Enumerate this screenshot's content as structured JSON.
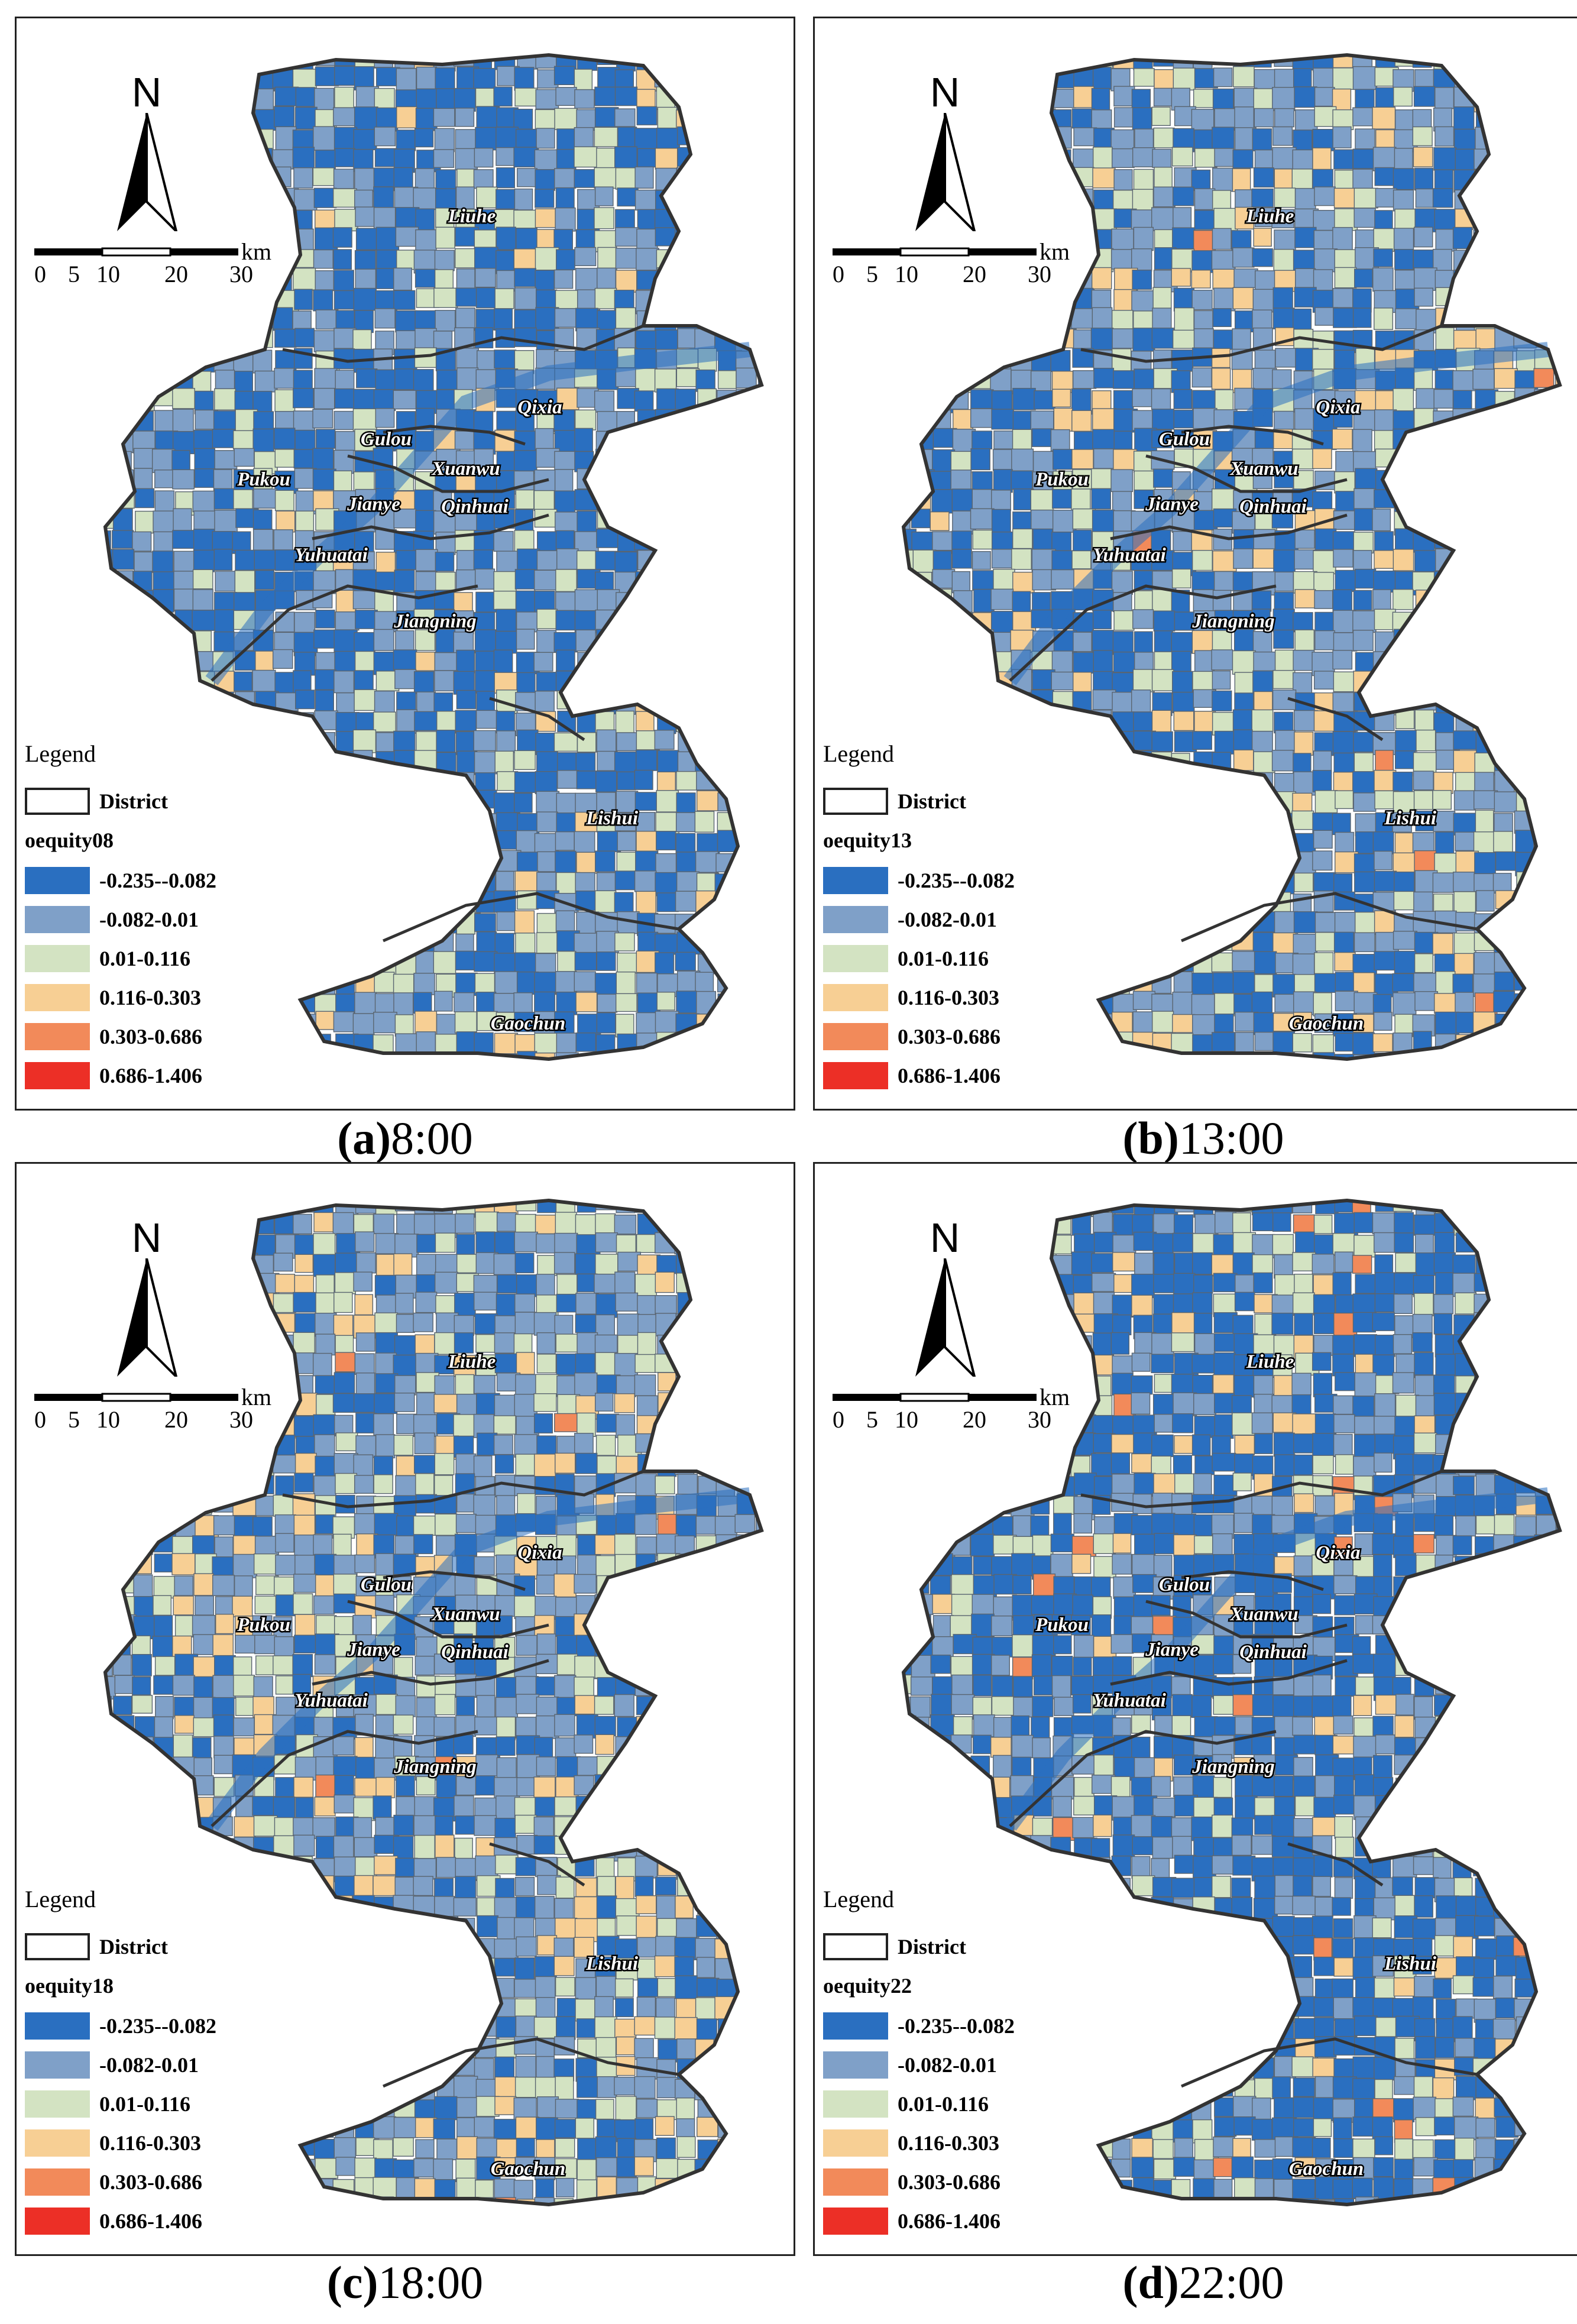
{
  "legend": {
    "title": "Legend",
    "district_label": "District",
    "classes": [
      {
        "label": "-0.235--0.082",
        "color": "#2a6fc0"
      },
      {
        "label": "-0.082-0.01",
        "color": "#7fa0c8"
      },
      {
        "label": "0.01-0.116",
        "color": "#d3e3c2"
      },
      {
        "label": "0.116-0.303",
        "color": "#f7cf94"
      },
      {
        "label": "0.303-0.686",
        "color": "#f28a5a"
      },
      {
        "label": "0.686-1.406",
        "color": "#ec2f26"
      }
    ]
  },
  "north_label": "N",
  "scale_bar": {
    "unit": "km",
    "ticks": [
      "0",
      "5",
      "10",
      "20",
      "30"
    ]
  },
  "district_names": [
    "Liuhe",
    "Qixia",
    "Gulou",
    "Xuanwu",
    "Pukou",
    "Jianye",
    "Qinhuai",
    "Yuhuatai",
    "Jiangning",
    "Lishui",
    "Gaochun"
  ],
  "panels": [
    {
      "field": "oequity08",
      "caption_letter": "(a)",
      "caption_time": "8:00",
      "weights": [
        0.42,
        0.34,
        0.18,
        0.06,
        0.0,
        0.0
      ]
    },
    {
      "field": "oequity13",
      "caption_letter": "(b)",
      "caption_time": "13:00",
      "weights": [
        0.36,
        0.36,
        0.16,
        0.115,
        0.005,
        0.0
      ]
    },
    {
      "field": "oequity18",
      "caption_letter": "(c)",
      "caption_time": "18:00",
      "weights": [
        0.26,
        0.4,
        0.2,
        0.13,
        0.01,
        0.0
      ]
    },
    {
      "field": "oequity22",
      "caption_letter": "(d)",
      "caption_time": "22:00",
      "weights": [
        0.55,
        0.25,
        0.12,
        0.06,
        0.02,
        0.0
      ]
    }
  ]
}
